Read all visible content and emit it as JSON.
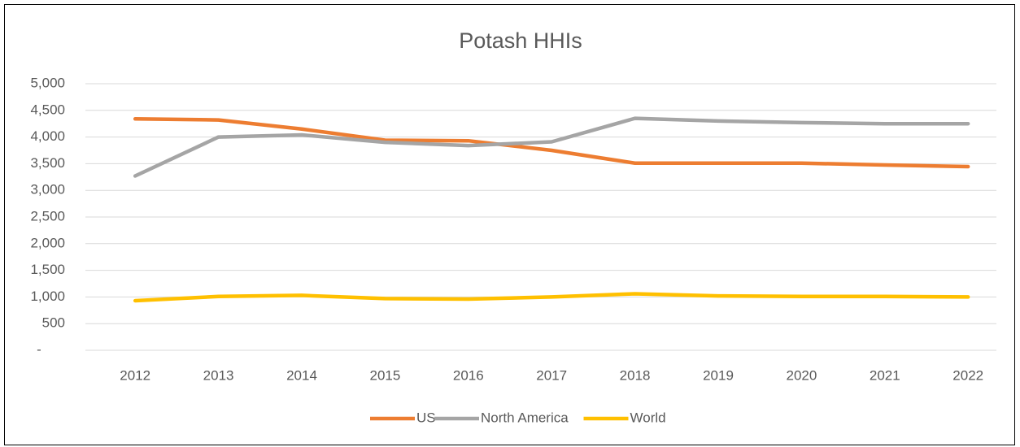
{
  "chart_data": {
    "type": "line",
    "title": "Potash HHIs",
    "categories": [
      "2012",
      "2013",
      "2014",
      "2015",
      "2016",
      "2017",
      "2018",
      "2019",
      "2020",
      "2021",
      "2022"
    ],
    "series": [
      {
        "name": "US",
        "color": "#ed7d31",
        "values": [
          4340,
          4320,
          4150,
          3940,
          3930,
          3750,
          3510,
          3510,
          3510,
          3475,
          3445
        ]
      },
      {
        "name": "North America",
        "color": "#a5a5a5",
        "values": [
          3270,
          4000,
          4040,
          3900,
          3840,
          3910,
          4350,
          4300,
          4270,
          4250,
          4250
        ]
      },
      {
        "name": "World",
        "color": "#ffc000",
        "values": [
          930,
          1010,
          1030,
          970,
          960,
          1000,
          1060,
          1020,
          1010,
          1010,
          1000
        ]
      }
    ],
    "ylim": [
      0,
      5000
    ],
    "yticks": [
      {
        "value": 0,
        "label": "-"
      },
      500,
      {
        "value": 1000,
        "label": "1,000"
      },
      {
        "value": 1500,
        "label": "1,500"
      },
      {
        "value": 2000,
        "label": "2,000"
      },
      {
        "value": 2500,
        "label": "2,500"
      },
      {
        "value": 3000,
        "label": "3,000"
      },
      {
        "value": 3500,
        "label": "3,500"
      },
      {
        "value": 4000,
        "label": "4,000"
      },
      {
        "value": 4500,
        "label": "4,500"
      },
      {
        "value": 5000,
        "label": "5,000"
      }
    ],
    "grid": true,
    "legend": "bottom"
  }
}
